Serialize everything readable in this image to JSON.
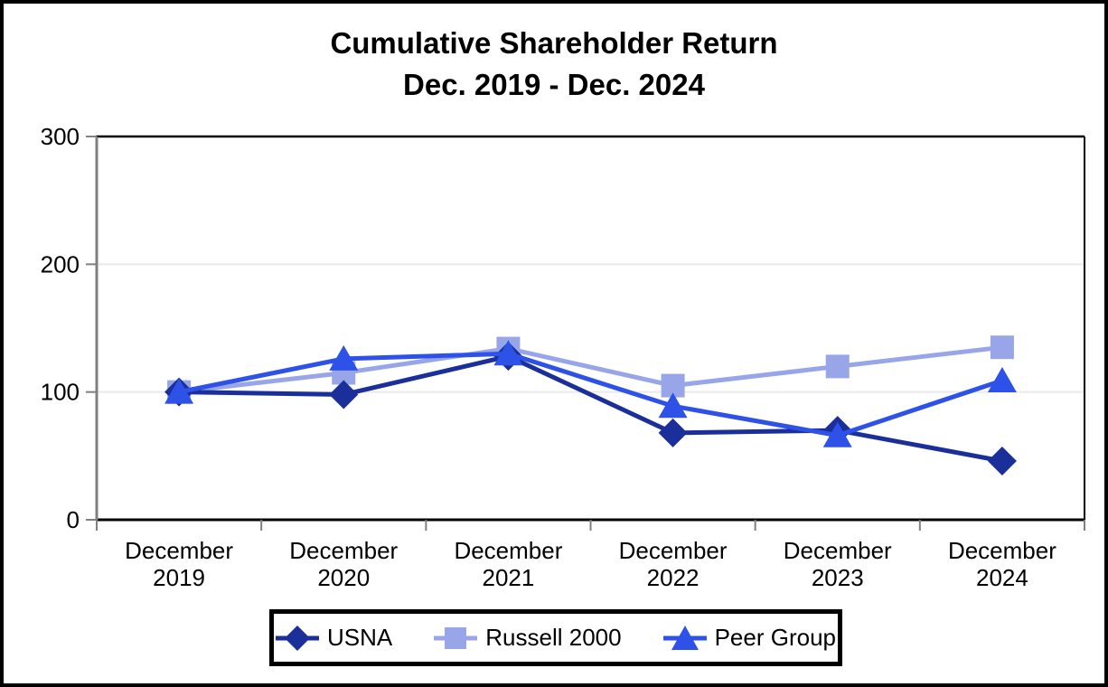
{
  "chart_data": {
    "type": "line",
    "title": "Cumulative Shareholder Return",
    "subtitle": "Dec. 2019 - Dec. 2024",
    "categories": [
      "December 2019",
      "December 2020",
      "December 2021",
      "December 2022",
      "December 2023",
      "December 2024"
    ],
    "series": [
      {
        "name": "USNA",
        "marker": "diamond",
        "color": "#1B2F9B",
        "values": [
          100,
          98,
          128,
          68,
          70,
          46
        ]
      },
      {
        "name": "Russell 2000",
        "marker": "square",
        "color": "#98A6E9",
        "values": [
          100,
          115,
          134,
          105,
          120,
          135
        ]
      },
      {
        "name": "Peer Group",
        "marker": "triangle",
        "color": "#2E52E8",
        "values": [
          100,
          126,
          130,
          89,
          66,
          109
        ]
      }
    ],
    "ylim": [
      0,
      300
    ],
    "yticks": [
      0,
      100,
      200,
      300
    ],
    "grid": "horizontal-light",
    "legend_position": "bottom",
    "style": {
      "axis_color": "#808080",
      "grid_color": "#EAEAEA",
      "plot_border_color": "#000000",
      "text_color": "#000000",
      "background": "#FFFFFF"
    }
  }
}
